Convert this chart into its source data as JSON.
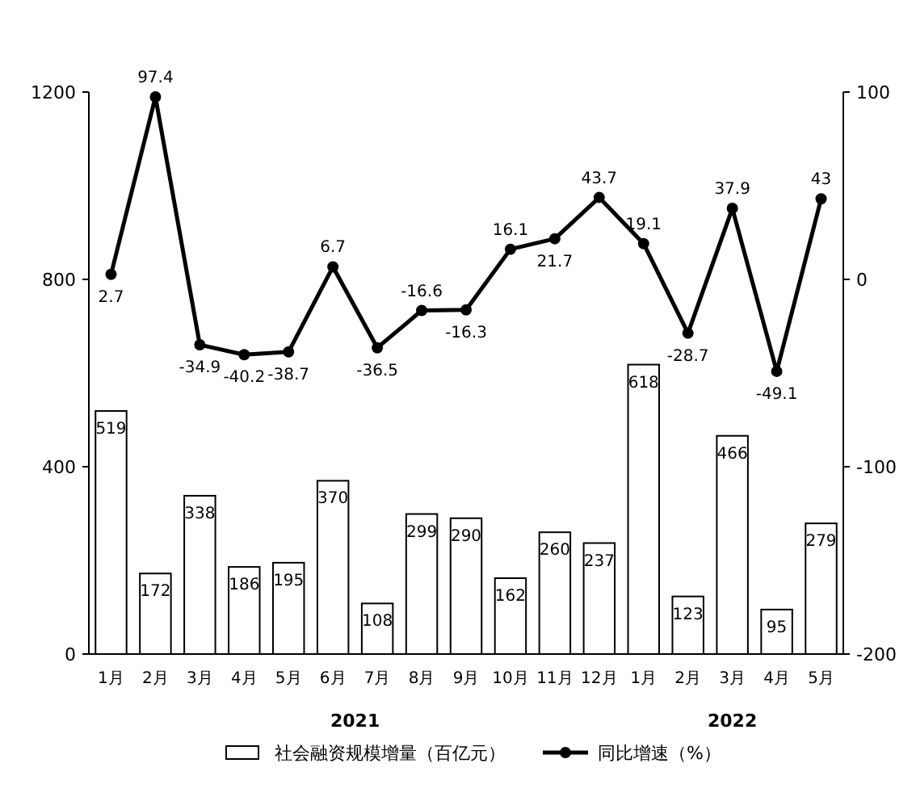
{
  "chart_data": {
    "type": "bar",
    "categories": [
      "1月",
      "2月",
      "3月",
      "4月",
      "5月",
      "6月",
      "7月",
      "8月",
      "9月",
      "10月",
      "11月",
      "12月",
      "1月",
      "2月",
      "3月",
      "4月",
      "5月"
    ],
    "series": [
      {
        "name": "社会融资规模增量（百亿元）",
        "color": "#ffffff",
        "values": [
          519,
          172,
          338,
          186,
          195,
          370,
          108,
          299,
          290,
          162,
          260,
          237,
          618,
          123,
          466,
          95,
          279
        ]
      },
      {
        "name": "同比增速（%）",
        "type": "line",
        "axis": "y2",
        "color": "#000000",
        "values": [
          2.7,
          97.4,
          -34.9,
          -40.2,
          -38.7,
          6.7,
          -36.5,
          -16.6,
          -16.3,
          16.1,
          21.7,
          43.7,
          19.1,
          -28.7,
          37.9,
          -49.1,
          43
        ]
      }
    ],
    "ylim": [
      0,
      1200
    ],
    "yticks": [
      0,
      400,
      800,
      1200
    ],
    "y2lim": [
      -200,
      100
    ],
    "y2ticks": [
      -200,
      -100,
      0,
      100
    ],
    "annotations": [
      "2021",
      "2022"
    ],
    "data_labels": true,
    "marker": "circle",
    "legend": "bottom",
    "grid": false
  }
}
